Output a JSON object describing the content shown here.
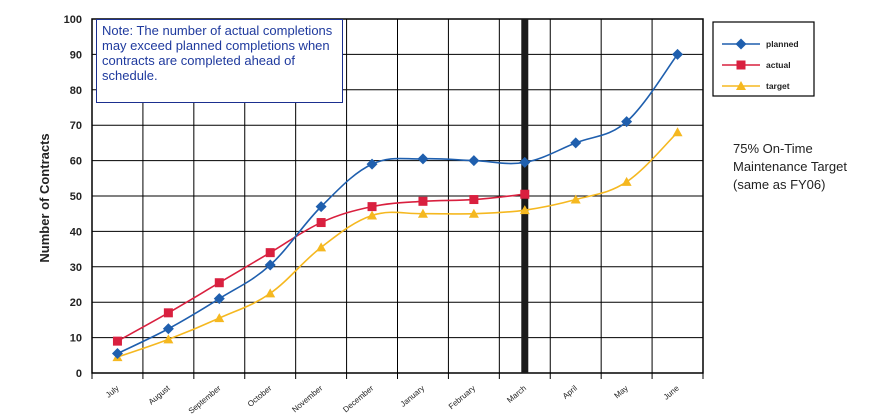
{
  "chart_data": {
    "type": "line",
    "ylabel": "Number of Contracts",
    "categories": [
      "July",
      "August",
      "September",
      "October",
      "November",
      "December",
      "January",
      "February",
      "March",
      "April",
      "May",
      "June"
    ],
    "ylim": [
      0,
      100
    ],
    "yticks": [
      0,
      10,
      20,
      30,
      40,
      50,
      60,
      70,
      80,
      90,
      100
    ],
    "grid": true,
    "legend_position": "top-right",
    "current_month_marker": "March",
    "series": [
      {
        "name": "planned",
        "color": "#1f5fae",
        "marker": "diamond",
        "values": [
          5.5,
          12.5,
          21,
          30.5,
          47,
          59,
          60.5,
          60,
          59.5,
          65,
          71,
          90
        ]
      },
      {
        "name": "actual",
        "color": "#d9203f",
        "marker": "square",
        "values": [
          9,
          17,
          25.5,
          34,
          42.5,
          47,
          48.5,
          49,
          50.5,
          null,
          null,
          null
        ]
      },
      {
        "name": "target",
        "color": "#f5b820",
        "marker": "triangle",
        "values": [
          4.5,
          9.5,
          15.5,
          22.5,
          35.5,
          44.5,
          45,
          45,
          46,
          49,
          54,
          68
        ]
      }
    ],
    "annotations": {
      "note": "Note: The number of actual completions may exceed planned completions when contracts are completed ahead of schedule.",
      "side_text": "75% On-Time Maintenance Target (same as FY06)"
    }
  }
}
